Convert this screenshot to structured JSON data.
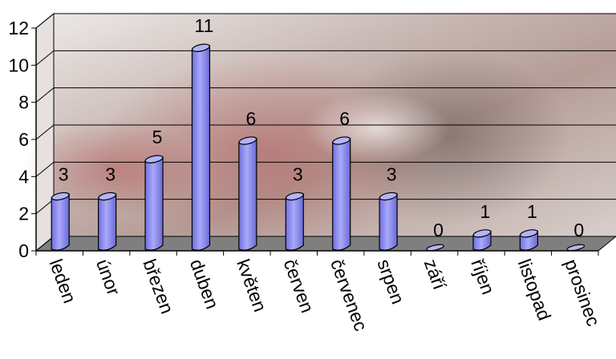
{
  "chart_data": {
    "type": "bar",
    "title": "",
    "xlabel": "",
    "ylabel": "",
    "ylim": [
      0,
      12
    ],
    "yticks": [
      0,
      2,
      4,
      6,
      8,
      10,
      12
    ],
    "grid": true,
    "legend": "none",
    "categories": [
      "leden",
      "únor",
      "březen",
      "duben",
      "květen",
      "červen",
      "červenec",
      "srpen",
      "září",
      "říjen",
      "listopad",
      "prosinec"
    ],
    "values": [
      3,
      3,
      5,
      11,
      6,
      3,
      6,
      3,
      0,
      1,
      1,
      0
    ],
    "data_labels": [
      "3",
      "3",
      "5",
      "11",
      "6",
      "3",
      "6",
      "3",
      "0",
      "1",
      "1",
      "0"
    ],
    "colors": {
      "bar_front": "#8c8cf0",
      "bar_top": "#b4b4fa",
      "bar_stroke": "#000000",
      "floor": "#7f7f7f",
      "grid": "#000000"
    }
  }
}
